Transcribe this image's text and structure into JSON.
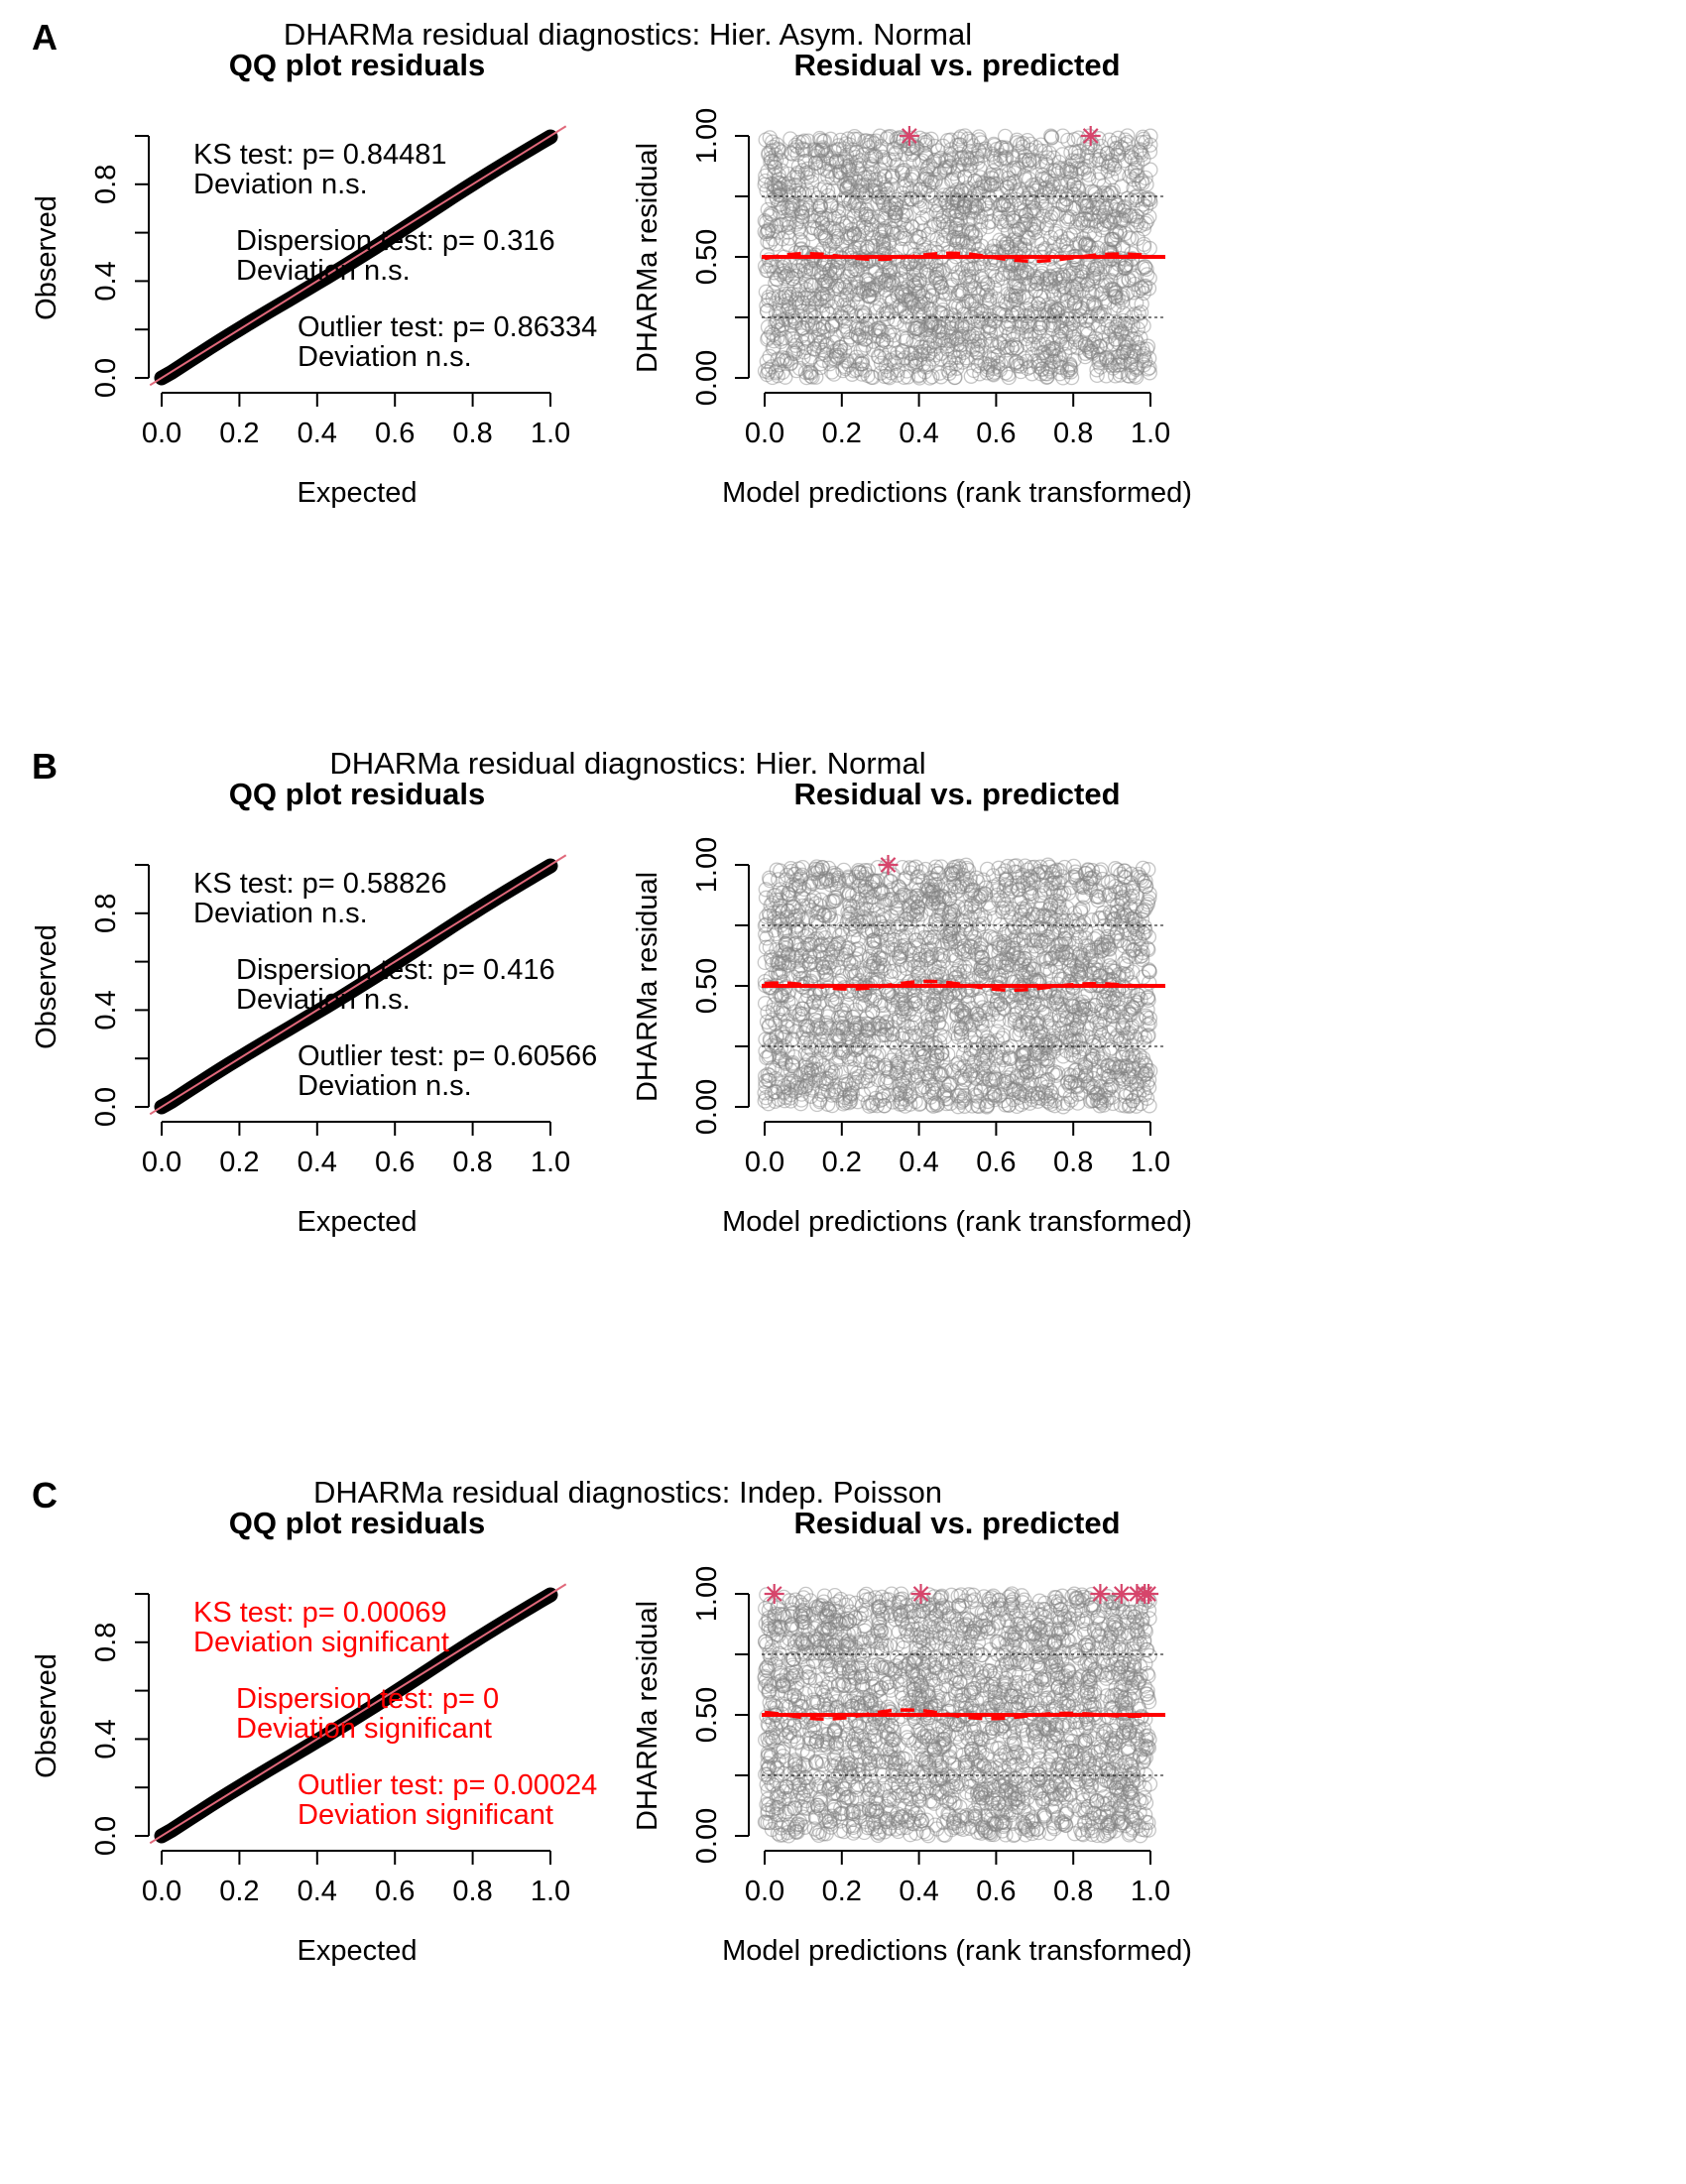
{
  "figure": {
    "colors": {
      "ink": "#000000",
      "red": "#ff0000",
      "star": "#d6456b",
      "ref_line": "#e0687a",
      "circle": "#808080"
    }
  },
  "chart_data": [
    {
      "panel": "A",
      "title": "DHARMa residual diagnostics: Hier. Asym. Normal",
      "qq": {
        "type": "line",
        "title": "QQ plot residuals",
        "xlabel": "Expected",
        "ylabel": "Observed",
        "xlim": [
          0,
          1
        ],
        "ylim": [
          0,
          1
        ],
        "xticks": [
          "0.0",
          "0.2",
          "0.4",
          "0.6",
          "0.8",
          "1.0"
        ],
        "yticks": [
          "0.0",
          "0.4",
          "0.8"
        ],
        "tests": [
          {
            "line1": "KS test: p= 0.84481",
            "line2": "Deviation  n.s.",
            "significant": false
          },
          {
            "line1": "Dispersion test: p= 0.316",
            "line2": "Deviation  n.s.",
            "significant": false
          },
          {
            "line1": "Outlier test: p= 0.86334",
            "line2": "Deviation  n.s.",
            "significant": false
          }
        ]
      },
      "resid": {
        "type": "scatter",
        "title": "Residual vs. predicted",
        "xlabel": "Model predictions (rank transformed)",
        "ylabel": "DHARMa residual",
        "xlim": [
          0,
          1
        ],
        "ylim": [
          0,
          1
        ],
        "xticks": [
          "0.0",
          "0.2",
          "0.4",
          "0.6",
          "0.8",
          "1.0"
        ],
        "yticks": [
          "0.00",
          "0.50",
          "1.00"
        ],
        "quantile_lines": [
          0.25,
          0.5,
          0.75
        ],
        "outliers": [
          0.375,
          0.845
        ]
      }
    },
    {
      "panel": "B",
      "title": "DHARMa residual diagnostics: Hier. Normal",
      "qq": {
        "type": "line",
        "title": "QQ plot residuals",
        "xlabel": "Expected",
        "ylabel": "Observed",
        "xlim": [
          0,
          1
        ],
        "ylim": [
          0,
          1
        ],
        "xticks": [
          "0.0",
          "0.2",
          "0.4",
          "0.6",
          "0.8",
          "1.0"
        ],
        "yticks": [
          "0.0",
          "0.4",
          "0.8"
        ],
        "tests": [
          {
            "line1": "KS test: p= 0.58826",
            "line2": "Deviation  n.s.",
            "significant": false
          },
          {
            "line1": "Dispersion test: p= 0.416",
            "line2": "Deviation  n.s.",
            "significant": false
          },
          {
            "line1": "Outlier test: p= 0.60566",
            "line2": "Deviation  n.s.",
            "significant": false
          }
        ]
      },
      "resid": {
        "type": "scatter",
        "title": "Residual vs. predicted",
        "xlabel": "Model predictions (rank transformed)",
        "ylabel": "DHARMa residual",
        "xlim": [
          0,
          1
        ],
        "ylim": [
          0,
          1
        ],
        "xticks": [
          "0.0",
          "0.2",
          "0.4",
          "0.6",
          "0.8",
          "1.0"
        ],
        "yticks": [
          "0.00",
          "0.50",
          "1.00"
        ],
        "quantile_lines": [
          0.25,
          0.5,
          0.75
        ],
        "outliers": [
          0.32
        ]
      }
    },
    {
      "panel": "C",
      "title": "DHARMa residual diagnostics: Indep. Poisson",
      "qq": {
        "type": "line",
        "title": "QQ plot residuals",
        "xlabel": "Expected",
        "ylabel": "Observed",
        "xlim": [
          0,
          1
        ],
        "ylim": [
          0,
          1
        ],
        "xticks": [
          "0.0",
          "0.2",
          "0.4",
          "0.6",
          "0.8",
          "1.0"
        ],
        "yticks": [
          "0.0",
          "0.4",
          "0.8"
        ],
        "tests": [
          {
            "line1": "KS test: p= 0.00069",
            "line2": "Deviation  significant",
            "significant": true
          },
          {
            "line1": "Dispersion test: p= 0",
            "line2": "Deviation  significant",
            "significant": true
          },
          {
            "line1": "Outlier test: p= 0.00024",
            "line2": "Deviation  significant",
            "significant": true
          }
        ]
      },
      "resid": {
        "type": "scatter",
        "title": "Residual vs. predicted",
        "xlabel": "Model predictions (rank transformed)",
        "ylabel": "DHARMa residual",
        "xlim": [
          0,
          1
        ],
        "ylim": [
          0,
          1
        ],
        "xticks": [
          "0.0",
          "0.2",
          "0.4",
          "0.6",
          "0.8",
          "1.0"
        ],
        "yticks": [
          "0.00",
          "0.50",
          "1.00"
        ],
        "quantile_lines": [
          0.25,
          0.5,
          0.75
        ],
        "outliers": [
          0.025,
          0.405,
          0.87,
          0.925,
          0.965,
          0.985,
          0.995
        ]
      }
    }
  ]
}
